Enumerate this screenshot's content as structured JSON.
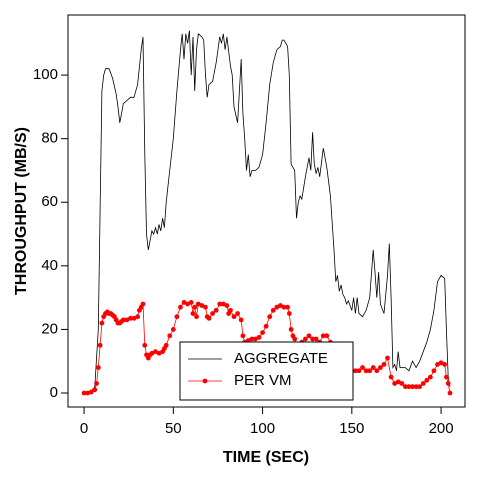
{
  "chart_data": {
    "type": "line",
    "x_label": "TIME (SEC)",
    "y_label": "THROUGHPUT (MB/S)",
    "xlim": [
      -9,
      213.4
    ],
    "ylim": [
      -4.4,
      118.9
    ],
    "xticks": [
      0,
      50,
      100,
      150,
      200
    ],
    "yticks": [
      0,
      20,
      40,
      60,
      80,
      100
    ],
    "legend": "bottom",
    "series": [
      {
        "name": "AGGREGATE",
        "color": "#000000",
        "marker": false,
        "x": [
          0,
          2,
          4,
          6,
          8,
          10,
          11,
          12,
          14,
          16,
          18,
          19,
          20,
          21,
          22,
          24,
          26,
          28,
          30,
          32,
          33,
          34,
          35,
          36,
          37,
          38,
          39,
          40,
          41,
          42,
          43,
          44,
          45,
          46,
          48,
          50,
          52,
          54,
          55,
          56,
          57,
          58,
          59,
          60,
          61,
          62,
          63,
          64,
          66,
          67,
          68,
          69,
          70,
          72,
          74,
          76,
          77,
          78,
          79,
          80,
          82,
          83,
          84,
          86,
          87,
          88,
          89,
          90,
          91,
          92,
          93,
          94,
          96,
          98,
          100,
          102,
          104,
          106,
          108,
          110,
          111,
          112,
          114,
          115,
          116,
          117,
          118,
          119,
          120,
          121,
          122,
          124,
          126,
          127,
          128,
          129,
          130,
          131,
          132,
          134,
          136,
          138,
          140,
          141,
          142,
          143,
          144,
          145,
          146,
          147,
          148,
          150,
          151,
          152,
          153,
          154,
          156,
          158,
          160,
          162,
          163,
          164,
          165,
          166,
          168,
          170,
          171,
          172,
          173,
          174,
          175,
          176,
          177,
          178,
          180,
          182,
          184,
          186,
          188,
          190,
          192,
          194,
          196,
          198,
          200,
          202,
          203,
          204,
          205
        ],
        "values": [
          0,
          0,
          0.5,
          2,
          20,
          95,
          100,
          102,
          102,
          99,
          94,
          90,
          85,
          88,
          91,
          92,
          93,
          93,
          97,
          108,
          112,
          75,
          50,
          45,
          48,
          51,
          50,
          52,
          50,
          53,
          51,
          55,
          52,
          60,
          70,
          80,
          95,
          108,
          113,
          105,
          113,
          110,
          114,
          100,
          112,
          95,
          108,
          113,
          112,
          111,
          100,
          93,
          97,
          98,
          104,
          112,
          110,
          113,
          108,
          112,
          103,
          100,
          90,
          85,
          95,
          105,
          88,
          80,
          70,
          75,
          68,
          70,
          70,
          71,
          75,
          85,
          97,
          104,
          108,
          109,
          111,
          111,
          109,
          100,
          72,
          71,
          70,
          55,
          60,
          62,
          61,
          68,
          74,
          70,
          82,
          72,
          69,
          71,
          68,
          77,
          71,
          62,
          45,
          35,
          37,
          32,
          34,
          31,
          30,
          28,
          29,
          26,
          30,
          25,
          30,
          25,
          24,
          26,
          30,
          45,
          38,
          30,
          38,
          28,
          25,
          37,
          47,
          30,
          8,
          9,
          7,
          13,
          8,
          8,
          8,
          7,
          10,
          8,
          10,
          13,
          16,
          20,
          26,
          35,
          37,
          36,
          20,
          5,
          2
        ]
      },
      {
        "name": "PER VM",
        "color": "#ff0000",
        "marker": true,
        "x": [
          0,
          2,
          4,
          6,
          7,
          8,
          9,
          10,
          11,
          12,
          13,
          14,
          15,
          16,
          17,
          18,
          19,
          20,
          21,
          22,
          24,
          26,
          28,
          30,
          31,
          32,
          33,
          34,
          35,
          36,
          37,
          38,
          40,
          42,
          44,
          45,
          46,
          48,
          50,
          52,
          54,
          56,
          58,
          60,
          61,
          62,
          63,
          64,
          66,
          68,
          69,
          70,
          72,
          74,
          76,
          78,
          80,
          81,
          82,
          84,
          86,
          88,
          89,
          90,
          92,
          94,
          96,
          98,
          100,
          102,
          104,
          106,
          108,
          110,
          112,
          114,
          115,
          116,
          117,
          118,
          120,
          122,
          124,
          126,
          128,
          130,
          132,
          134,
          136,
          138,
          140,
          142,
          144,
          146,
          148,
          150,
          152,
          154,
          156,
          158,
          160,
          162,
          164,
          166,
          168,
          170,
          172,
          174,
          176,
          178,
          180,
          182,
          184,
          186,
          188,
          190,
          192,
          194,
          196,
          198,
          200,
          202,
          203,
          204,
          205
        ],
        "values": [
          0,
          0,
          0.3,
          1,
          3,
          8,
          15,
          22,
          24,
          25,
          25.5,
          25,
          25,
          24.5,
          24,
          23,
          22,
          22,
          22.5,
          23,
          23,
          23.5,
          23.5,
          24,
          26,
          27,
          28,
          15,
          12,
          11,
          12,
          12.5,
          13,
          12.5,
          13,
          14,
          15,
          18,
          20,
          24,
          27,
          28.5,
          28,
          28.5,
          25,
          27,
          24,
          28,
          27.5,
          27,
          24,
          23.5,
          25,
          26,
          28,
          28,
          27.5,
          25,
          26,
          24,
          25,
          23,
          18,
          16,
          16.5,
          17,
          17,
          17.5,
          19,
          21,
          24,
          26,
          27,
          27.5,
          27,
          27,
          25,
          20,
          18,
          17,
          13,
          16,
          17,
          18,
          17,
          17,
          16,
          18,
          18,
          16,
          14,
          11,
          10,
          9,
          8,
          7,
          7,
          7,
          8,
          7,
          7,
          8,
          7,
          8,
          9,
          11,
          5,
          3,
          3.5,
          3,
          2,
          2,
          2,
          2,
          2,
          3,
          4,
          5,
          7,
          9,
          9.5,
          9,
          5,
          3,
          0
        ]
      }
    ]
  }
}
